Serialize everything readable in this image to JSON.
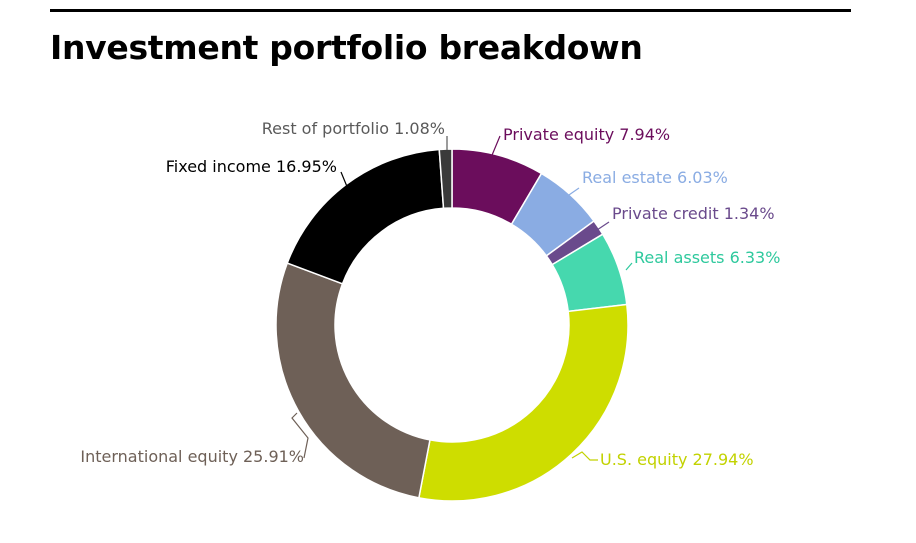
{
  "title": "Investment portfolio breakdown",
  "chart_data": {
    "type": "pie",
    "variant": "donut",
    "title": "Investment portfolio breakdown",
    "unit": "%",
    "legend": "none",
    "slices": [
      {
        "label": "Private equity",
        "value": 7.94,
        "display": "Private equity 7.94%",
        "color": "#6b0d5c",
        "label_color": "#6b0d5c"
      },
      {
        "label": "Real estate",
        "value": 6.03,
        "display": "Real estate 6.03%",
        "color": "#8aace3",
        "label_color": "#8aace3"
      },
      {
        "label": "Private credit",
        "value": 1.34,
        "display": "Private credit 1.34%",
        "color": "#6a4a8c",
        "label_color": "#6a4a8c"
      },
      {
        "label": "Real assets",
        "value": 6.33,
        "display": "Real assets 6.33%",
        "color": "#46d8ae",
        "label_color": "#2ec99d"
      },
      {
        "label": "U.S. equity",
        "value": 27.94,
        "display": "U.S. equity 27.94%",
        "color": "#cedd00",
        "label_color": "#c2d200"
      },
      {
        "label": "International equity",
        "value": 25.91,
        "display": "International equity 25.91%",
        "color": "#6e6057",
        "label_color": "#6e6057"
      },
      {
        "label": "Fixed income",
        "value": 16.95,
        "display": "Fixed income 16.95%",
        "color": "#000000",
        "label_color": "#000000"
      },
      {
        "label": "Rest of portfolio",
        "value": 1.08,
        "display": "Rest of portfolio 1.08%",
        "color": "#3a3a3a",
        "label_color": "#5a5a5a"
      }
    ]
  }
}
